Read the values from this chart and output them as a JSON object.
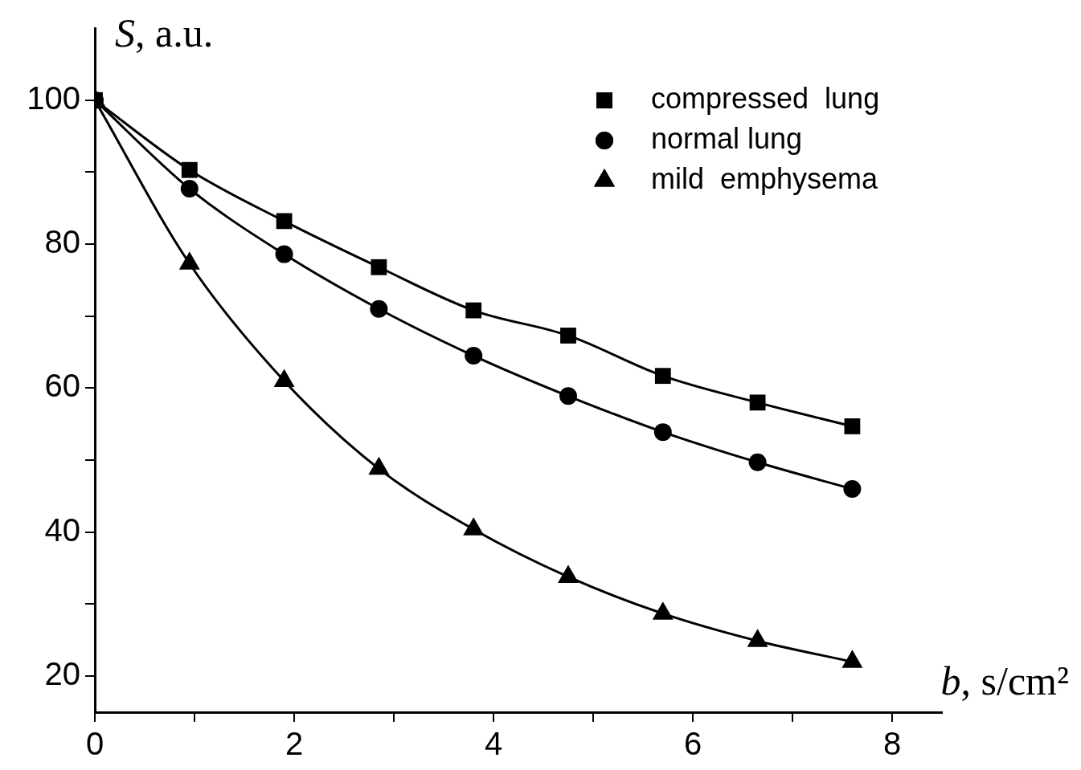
{
  "chart_data": {
    "type": "line",
    "xlabel": "b, s/cm²",
    "ylabel": "S, a.u.",
    "x": [
      0,
      0.95,
      1.9,
      2.85,
      3.8,
      4.75,
      5.7,
      6.65,
      7.6
    ],
    "series": [
      {
        "name": "compressed  lung",
        "color": "#000000",
        "marker": "square",
        "values": [
          100,
          90.3,
          83.2,
          76.8,
          70.8,
          67.3,
          61.7,
          58.0,
          54.7
        ]
      },
      {
        "name": "normal lung",
        "color": "#000000",
        "marker": "circle",
        "values": [
          100,
          87.7,
          78.6,
          71.0,
          64.5,
          58.9,
          53.9,
          49.7,
          46.0
        ]
      },
      {
        "name": "mild  emphysema",
        "color": "#000000",
        "marker": "triangle",
        "values": [
          100,
          77.3,
          61.0,
          48.8,
          40.4,
          33.8,
          28.7,
          24.9,
          22.0
        ]
      }
    ],
    "xlim": [
      0,
      8.5
    ],
    "xticks": [
      0,
      {
        "value": 1,
        "label": null
      },
      2,
      {
        "value": 3,
        "label": null
      },
      4,
      {
        "value": 5,
        "label": null
      },
      6,
      {
        "value": 7,
        "label": null
      },
      8
    ],
    "ylim": [
      15,
      110
    ],
    "yticks": [
      20,
      {
        "value": 30,
        "label": null
      },
      40,
      {
        "value": 50,
        "label": null
      },
      60,
      {
        "value": 70,
        "label": null
      },
      80,
      {
        "value": 90,
        "label": null
      },
      100
    ],
    "grid": false,
    "legend": "top right",
    "line_style": "solid"
  }
}
